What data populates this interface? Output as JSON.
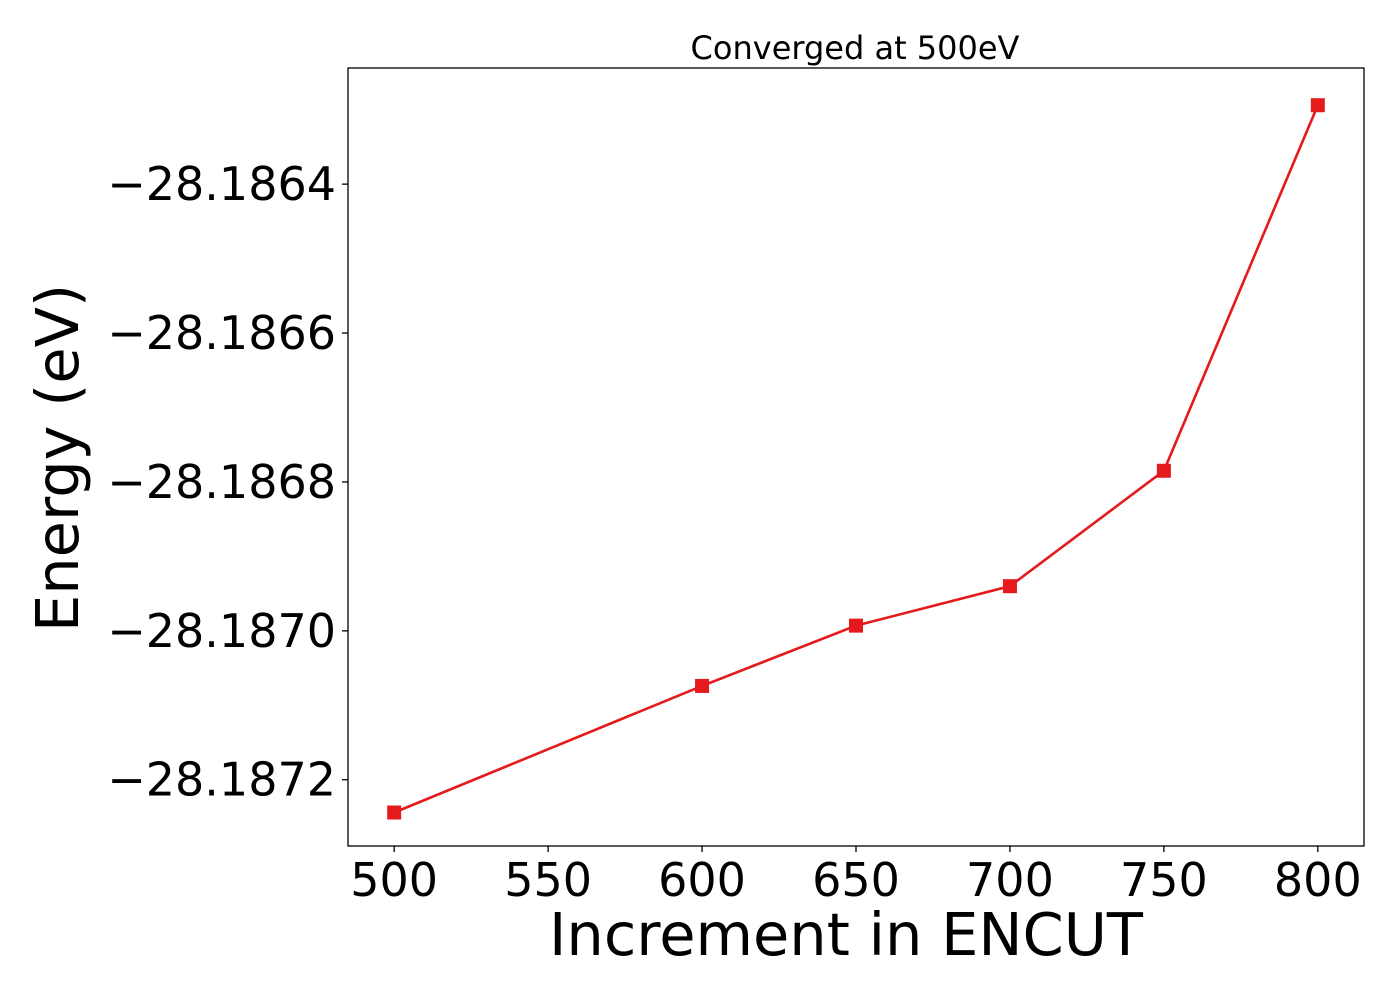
{
  "chart_data": {
    "type": "line",
    "title": "Converged at 500eV",
    "xlabel": "Increment in ENCUT",
    "ylabel": "Energy (eV)",
    "x": [
      500,
      600,
      650,
      700,
      750,
      800
    ],
    "series": [
      {
        "values": [
          -28.187244,
          -28.187074,
          -28.186993,
          -28.18694,
          -28.186785,
          -28.186294
        ],
        "color": "#e41a1c",
        "marker": "square"
      }
    ],
    "xticks": [
      500,
      550,
      600,
      650,
      700,
      750,
      800
    ],
    "xtick_labels": [
      "500",
      "550",
      "600",
      "650",
      "700",
      "750",
      "800"
    ],
    "yticks": [
      -28.1864,
      -28.1866,
      -28.1868,
      -28.187,
      -28.1872
    ],
    "ytick_labels": [
      "−28.1864",
      "−28.1866",
      "−28.1868",
      "−28.1870",
      "−28.1872"
    ],
    "xlim": [
      485,
      815
    ],
    "ylim": [
      -28.187289,
      -28.186244
    ],
    "grid": false,
    "legend": false
  }
}
